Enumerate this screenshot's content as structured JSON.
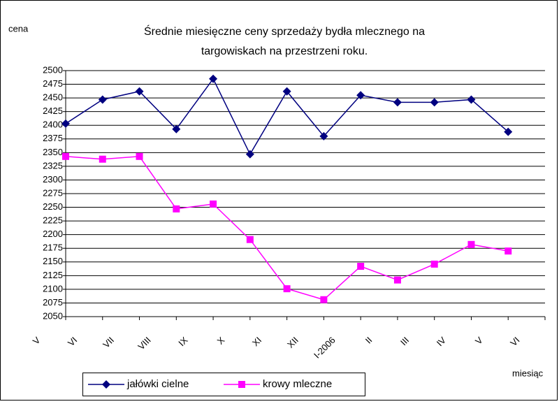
{
  "chart_data": {
    "type": "line",
    "title": [
      "Średnie miesięczne ceny sprzedaży bydła mlecznego na",
      "targowiskach na przestrzeni roku."
    ],
    "y_label": "cena",
    "x_label": "miesiąc",
    "categories": [
      "V",
      "VI",
      "VII",
      "VIII",
      "IX",
      "X",
      "XI",
      "XII",
      "I-2006",
      "II",
      "III",
      "IV",
      "V",
      "VI"
    ],
    "series": [
      {
        "name": "jałówki cielne",
        "color": "#000080",
        "marker": "diamond",
        "values": [
          2403,
          2447,
          2462,
          2393,
          2485,
          2347,
          2462,
          2380,
          2455,
          2442,
          2442,
          2447,
          2388,
          null
        ]
      },
      {
        "name": "krowy mleczne",
        "color": "#ff00ff",
        "marker": "square",
        "values": [
          2343,
          2338,
          2343,
          2247,
          2256,
          2191,
          2101,
          2081,
          2142,
          2117,
          2146,
          2182,
          2170,
          null
        ]
      }
    ],
    "ylim": [
      2050,
      2500
    ],
    "yticks": [
      2050,
      2075,
      2100,
      2125,
      2150,
      2175,
      2200,
      2225,
      2250,
      2275,
      2300,
      2325,
      2350,
      2375,
      2400,
      2425,
      2450,
      2475,
      2500
    ],
    "grid": true,
    "legend": "bottom"
  }
}
